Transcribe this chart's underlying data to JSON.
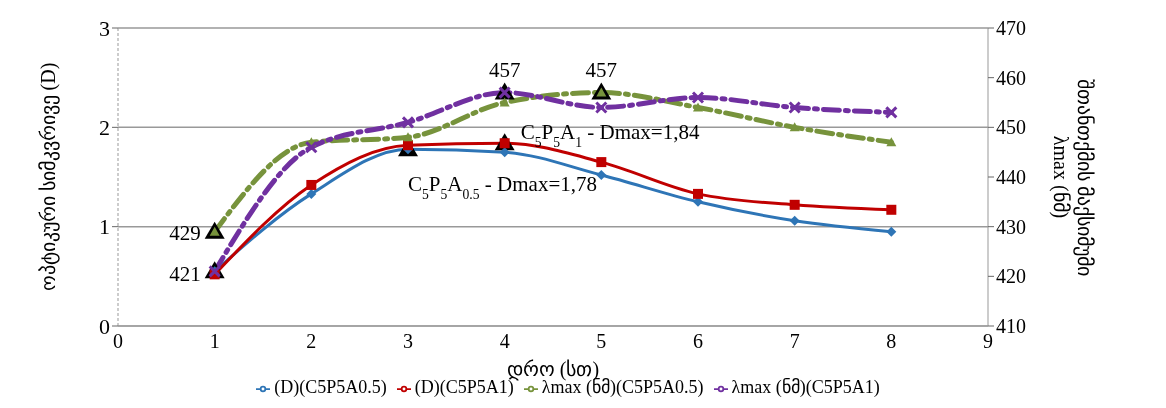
{
  "chart_data": {
    "type": "line",
    "xlabel": "დრო (სთ)",
    "ylabel": "ოპტიკური სიმკვრივე (D)",
    "y2label": "შთანთქმის მაქსიმუმი\nλmax (ნმ)",
    "x": [
      1,
      2,
      3,
      4,
      5,
      6,
      7,
      8
    ],
    "xlim": [
      0,
      9
    ],
    "xticks": [
      0,
      1,
      2,
      3,
      4,
      5,
      6,
      7,
      8,
      9
    ],
    "ylim": [
      0,
      3
    ],
    "yticks": [
      0,
      1,
      2,
      3
    ],
    "y2lim": [
      410,
      470
    ],
    "y2ticks": [
      410,
      420,
      430,
      440,
      450,
      460,
      470
    ],
    "grid": "y",
    "legend": "bottom",
    "series": [
      {
        "name": "(D)(C5P5A0.5)",
        "color": "#2e75b6",
        "values": [
          0.55,
          1.33,
          1.78,
          1.75,
          1.52,
          1.25,
          1.06,
          0.95
        ],
        "marker": "diamond",
        "line_style": "solid"
      },
      {
        "name": "(D)(C5P5A1)",
        "color": "#c00000",
        "values": [
          0.52,
          1.42,
          1.82,
          1.84,
          1.65,
          1.33,
          1.22,
          1.17
        ],
        "marker": "square",
        "line_style": "solid"
      },
      {
        "name": "λmax (ნმ)(C5P5A0.5)",
        "color": "#77933c",
        "values": [
          429,
          447,
          448,
          455,
          457,
          454,
          450,
          447
        ],
        "marker": "triangle",
        "line_style": "dashed",
        "axis": "y2"
      },
      {
        "name": "λmax (ნმ)(C5P5A1)",
        "color": "#7030a0",
        "values": [
          421,
          446,
          451,
          457,
          454,
          456,
          454,
          453
        ],
        "marker": "cross",
        "line_style": "dashed",
        "axis": "y2"
      },
      {
        "type": "scatter",
        "color": "#000000",
        "x": [
          1,
          1,
          4,
          5
        ],
        "values": [
          429,
          421,
          457,
          457
        ],
        "marker": "triangle",
        "axis": "y2",
        "value_labels": [
          "429",
          "421",
          "457",
          "457"
        ]
      },
      {
        "type": "scatter",
        "color": "#000000",
        "x": [
          3,
          4
        ],
        "values": [
          1.78,
          1.84
        ],
        "marker": "triangle",
        "value_labels": [
          "C$_{5}$P$_{5}$A$_{0.5}$  -  Dmax=1,78",
          "C$_{5}$P$_{5}$A$_{1}$ - Dmax=1,84"
        ]
      }
    ]
  }
}
